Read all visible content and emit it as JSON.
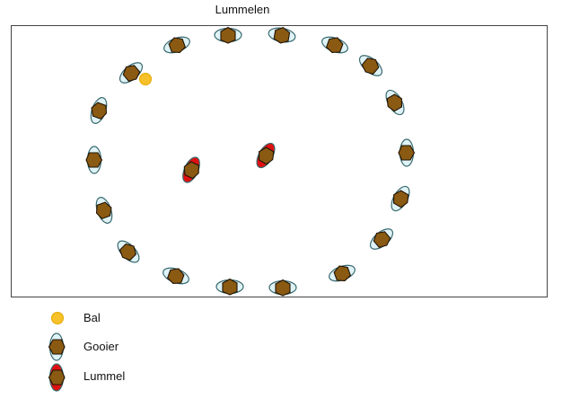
{
  "title": "Lummelen",
  "colors": {
    "gooier_outer": "#dff3f6",
    "lummel_outer": "#e01010",
    "body": "#8b5a12",
    "ball": "#f6c12a",
    "field_border": "#444444"
  },
  "legend": {
    "ball_label": "Bal",
    "gooier_label": "Gooier",
    "lummel_label": "Lummel"
  },
  "players": {
    "gooiers": 20,
    "lummels": 2
  }
}
